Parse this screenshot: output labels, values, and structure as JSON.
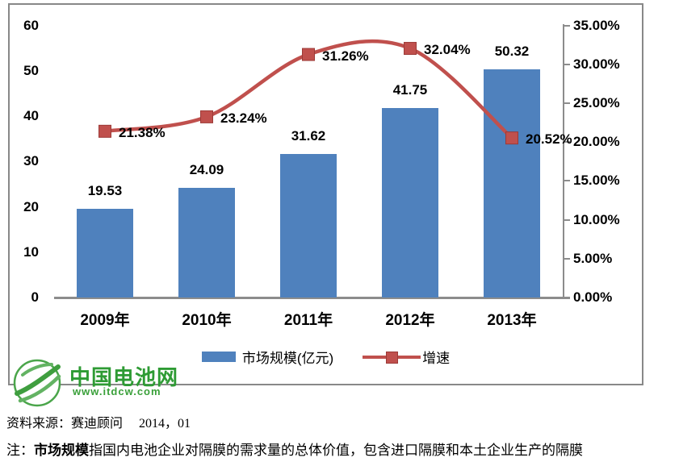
{
  "chart_data": {
    "type": "combo",
    "categories": [
      "2009年",
      "2010年",
      "2011年",
      "2012年",
      "2013年"
    ],
    "series": [
      {
        "name": "市场规模(亿元)",
        "type": "bar",
        "axis": "left",
        "values": [
          19.53,
          24.09,
          31.62,
          41.75,
          50.32
        ],
        "labels": [
          "19.53",
          "24.09",
          "31.62",
          "41.75",
          "50.32"
        ],
        "color": "#4F81BD"
      },
      {
        "name": "增速",
        "type": "line",
        "axis": "right",
        "values": [
          21.38,
          23.24,
          31.26,
          32.04,
          20.52
        ],
        "labels": [
          "21.38%",
          "23.24%",
          "31.26%",
          "32.04%",
          "20.52%"
        ],
        "color": "#C0504D",
        "marker": "square",
        "smooth": true
      }
    ],
    "left_axis": {
      "min": 0,
      "max": 60,
      "step": 10,
      "tick_labels": [
        "0",
        "10",
        "20",
        "30",
        "40",
        "50",
        "60"
      ]
    },
    "right_axis": {
      "min": 0,
      "max": 35,
      "step": 5,
      "tick_labels": [
        "0.00%",
        "5.00%",
        "10.00%",
        "15.00%",
        "20.00%",
        "25.00%",
        "30.00%",
        "35.00%"
      ]
    },
    "legend": [
      "市场规模(亿元)",
      "增速"
    ],
    "legend_position": "bottom",
    "grid": false,
    "title": ""
  },
  "colors": {
    "bar": "#4F81BD",
    "line": "#C0504D",
    "marker_stroke": "#9C3A37",
    "axis": "#8C8C8C",
    "frame": "#888888",
    "logo_green": "#2E9B34",
    "logo_url_green": "#3AA03A"
  },
  "logo": {
    "title": "中国电池网",
    "url": "www.itdcw.com"
  },
  "footer": {
    "source": "资料来源：赛迪顾问　 2014，01",
    "note_prefix": "注：",
    "note_bold": "市场规模",
    "note_rest": "指国内电池企业对隔膜的需求量的总体价值，包含进口隔膜和本土企业生产的隔膜"
  }
}
